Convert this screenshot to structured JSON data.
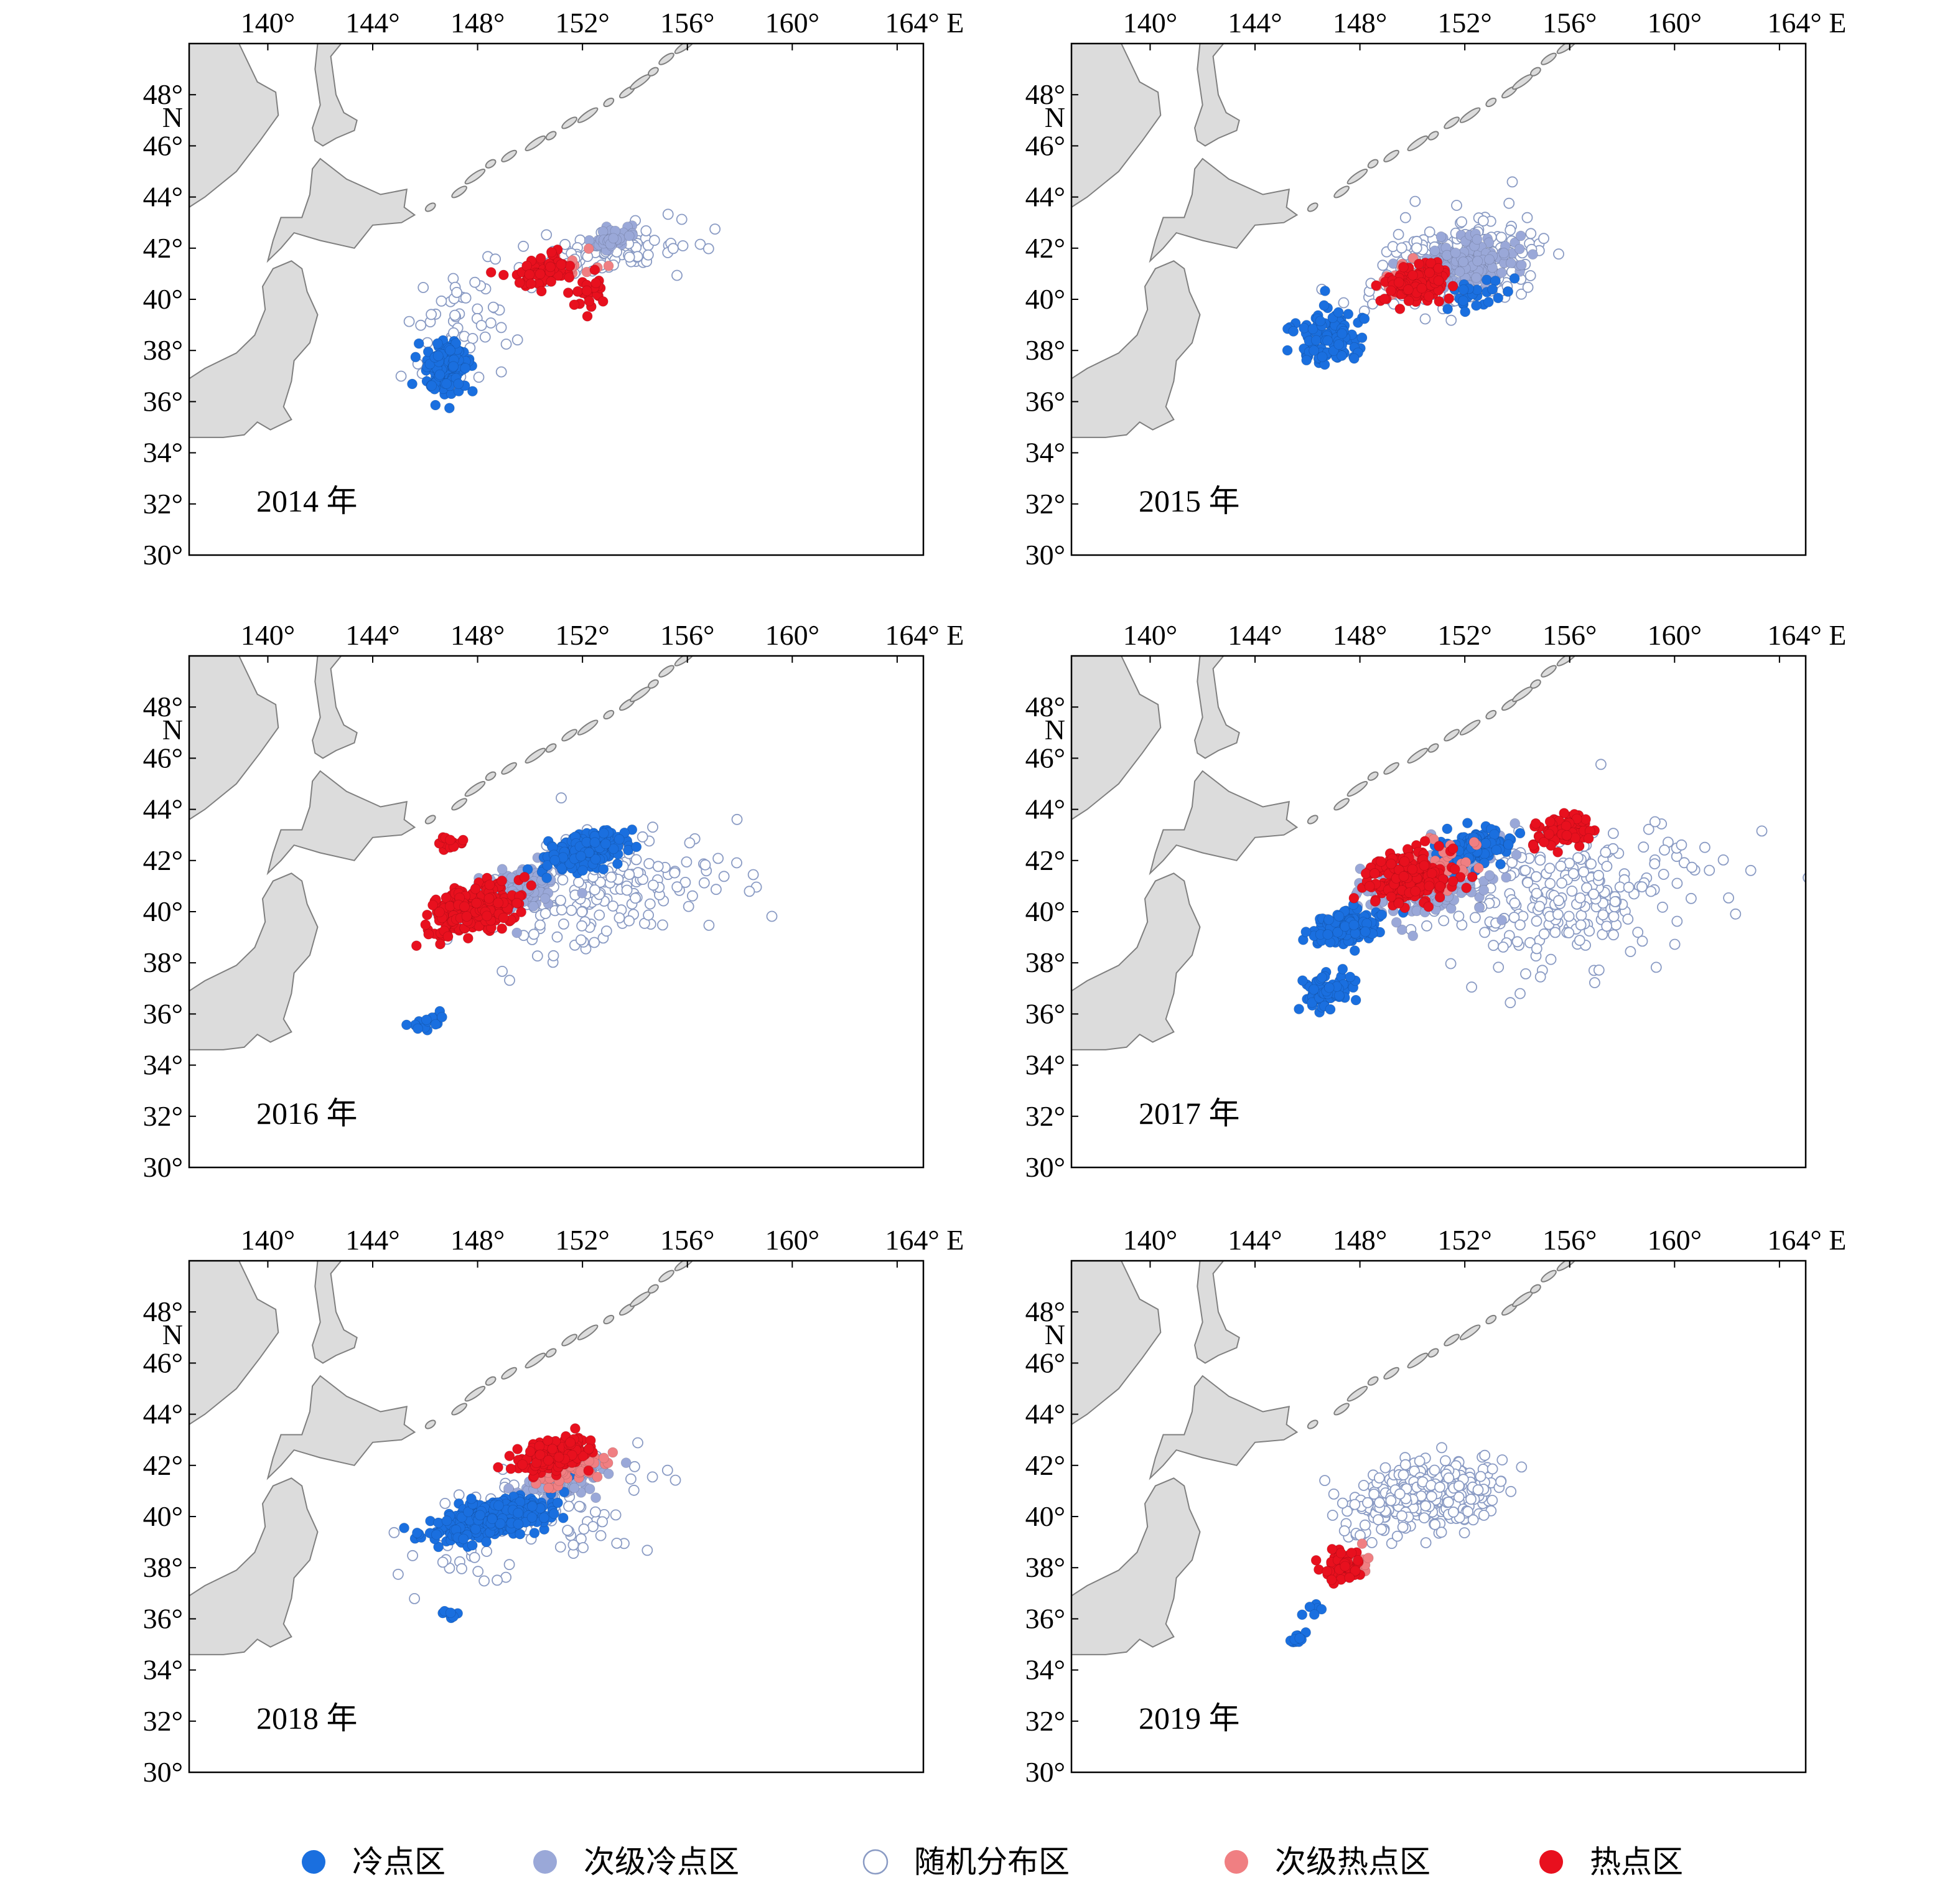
{
  "figure": {
    "x_ticks": [
      "140°",
      "144°",
      "148°",
      "152°",
      "156°",
      "160°",
      "164° E"
    ],
    "y_ticks": [
      "48°",
      "N",
      "46°",
      "44°",
      "42°",
      "40°",
      "38°",
      "36°",
      "34°",
      "32°",
      "30°"
    ]
  },
  "panels": [
    {
      "year_label": "2014 年"
    },
    {
      "year_label": "2015 年"
    },
    {
      "year_label": "2016 年"
    },
    {
      "year_label": "2017 年"
    },
    {
      "year_label": "2018 年"
    },
    {
      "year_label": "2019 年"
    }
  ],
  "legend": [
    {
      "label": "冷点区",
      "color": "#1a6fdf",
      "style": "filled"
    },
    {
      "label": "次级冷点区",
      "color": "#9aa8d8",
      "style": "filled"
    },
    {
      "label": "随机分布区",
      "color": "#ffffff",
      "stroke": "#8a9bc4",
      "style": "hollow"
    },
    {
      "label": "次级热点区",
      "color": "#f07f82",
      "style": "filled"
    },
    {
      "label": "热点区",
      "color": "#e8101e",
      "style": "filled"
    }
  ],
  "colors": {
    "land": "#dcdcdc",
    "land_outline": "#7f7f7f",
    "frame": "#000000"
  },
  "chart_data": {
    "type": "scatter",
    "projection": "lon-lat",
    "xlim": [
      137,
      165
    ],
    "ylim": [
      30,
      50
    ],
    "categories": [
      "冷点区",
      "次级冷点区",
      "随机分布区",
      "次级热点区",
      "热点区"
    ],
    "panels": [
      {
        "year": 2014,
        "clusters": [
          {
            "category": "冷点区",
            "lon": 146.8,
            "lat": 37.3,
            "spread_lon": 0.8,
            "spread_lat": 0.9,
            "n": 140
          },
          {
            "category": "随机分布区",
            "lon": 147.5,
            "lat": 39.0,
            "spread_lon": 2.0,
            "spread_lat": 2.5,
            "n": 60
          },
          {
            "category": "随机分布区",
            "lon": 153.0,
            "lat": 41.8,
            "spread_lon": 2.5,
            "spread_lat": 0.9,
            "n": 90
          },
          {
            "category": "次级冷点区",
            "lon": 153.2,
            "lat": 42.4,
            "spread_lon": 0.7,
            "spread_lat": 0.4,
            "n": 40
          },
          {
            "category": "热点区",
            "lon": 150.5,
            "lat": 41.1,
            "spread_lon": 0.9,
            "spread_lat": 0.6,
            "n": 70
          },
          {
            "category": "热点区",
            "lon": 152.3,
            "lat": 40.2,
            "spread_lon": 0.7,
            "spread_lat": 0.6,
            "n": 25
          },
          {
            "category": "次级热点区",
            "lon": 151.6,
            "lat": 41.3,
            "spread_lon": 0.8,
            "spread_lat": 0.5,
            "n": 15
          }
        ]
      },
      {
        "year": 2015,
        "clusters": [
          {
            "category": "冷点区",
            "lon": 146.8,
            "lat": 38.5,
            "spread_lon": 1.2,
            "spread_lat": 1.0,
            "n": 110
          },
          {
            "category": "随机分布区",
            "lon": 151.5,
            "lat": 41.3,
            "spread_lon": 3.0,
            "spread_lat": 1.5,
            "n": 240
          },
          {
            "category": "次级冷点区",
            "lon": 152.2,
            "lat": 41.4,
            "spread_lon": 1.8,
            "spread_lat": 0.9,
            "n": 150
          },
          {
            "category": "热点区",
            "lon": 150.2,
            "lat": 40.6,
            "spread_lon": 1.1,
            "spread_lat": 0.6,
            "n": 120
          },
          {
            "category": "次级热点区",
            "lon": 149.8,
            "lat": 40.8,
            "spread_lon": 0.9,
            "spread_lat": 0.6,
            "n": 25
          },
          {
            "category": "冷点区",
            "lon": 152.5,
            "lat": 40.2,
            "spread_lon": 1.2,
            "spread_lat": 0.5,
            "n": 25
          }
        ]
      },
      {
        "year": 2016,
        "clusters": [
          {
            "category": "热点区",
            "lon": 147.8,
            "lat": 40.1,
            "spread_lon": 1.5,
            "spread_lat": 0.8,
            "n": 280
          },
          {
            "category": "次级冷点区",
            "lon": 149.5,
            "lat": 40.8,
            "spread_lon": 1.5,
            "spread_lat": 0.8,
            "n": 140
          },
          {
            "category": "冷点区",
            "lon": 152.2,
            "lat": 42.4,
            "spread_lon": 1.5,
            "spread_lat": 0.6,
            "n": 220
          },
          {
            "category": "随机分布区",
            "lon": 152.5,
            "lat": 40.5,
            "spread_lon": 4.5,
            "spread_lat": 2.0,
            "n": 170
          },
          {
            "category": "冷点区",
            "lon": 146.2,
            "lat": 35.7,
            "spread_lon": 0.6,
            "spread_lat": 0.3,
            "n": 15
          },
          {
            "category": "热点区",
            "lon": 147.0,
            "lat": 42.6,
            "spread_lon": 0.4,
            "spread_lat": 0.3,
            "n": 12
          }
        ]
      },
      {
        "year": 2017,
        "clusters": [
          {
            "category": "冷点区",
            "lon": 147.5,
            "lat": 39.4,
            "spread_lon": 1.2,
            "spread_lat": 0.6,
            "n": 160
          },
          {
            "category": "冷点区",
            "lon": 146.7,
            "lat": 36.8,
            "spread_lon": 0.8,
            "spread_lat": 0.6,
            "n": 70
          },
          {
            "category": "热点区",
            "lon": 149.8,
            "lat": 41.3,
            "spread_lon": 1.4,
            "spread_lat": 1.0,
            "n": 190
          },
          {
            "category": "次级冷点区",
            "lon": 150.5,
            "lat": 41.0,
            "spread_lon": 2.5,
            "spread_lat": 1.2,
            "n": 150
          },
          {
            "category": "冷点区",
            "lon": 152.3,
            "lat": 42.5,
            "spread_lon": 1.2,
            "spread_lat": 0.6,
            "n": 140
          },
          {
            "category": "热点区",
            "lon": 155.8,
            "lat": 43.2,
            "spread_lon": 1.0,
            "spread_lat": 0.5,
            "n": 90
          },
          {
            "category": "随机分布区",
            "lon": 156.0,
            "lat": 40.5,
            "spread_lon": 5.0,
            "spread_lat": 2.5,
            "n": 240
          },
          {
            "category": "次级热点区",
            "lon": 151.0,
            "lat": 41.8,
            "spread_lon": 1.5,
            "spread_lat": 1.0,
            "n": 30
          }
        ]
      },
      {
        "year": 2018,
        "clusters": [
          {
            "category": "冷点区",
            "lon": 148.6,
            "lat": 39.9,
            "spread_lon": 2.0,
            "spread_lat": 0.6,
            "n": 380
          },
          {
            "category": "热点区",
            "lon": 151.0,
            "lat": 42.4,
            "spread_lon": 1.3,
            "spread_lat": 0.6,
            "n": 200
          },
          {
            "category": "次级冷点区",
            "lon": 151.3,
            "lat": 41.6,
            "spread_lon": 1.5,
            "spread_lat": 0.6,
            "n": 130
          },
          {
            "category": "次级热点区",
            "lon": 151.6,
            "lat": 41.9,
            "spread_lon": 1.2,
            "spread_lat": 0.5,
            "n": 60
          },
          {
            "category": "随机分布区",
            "lon": 150.5,
            "lat": 40.0,
            "spread_lon": 4.5,
            "spread_lat": 2.0,
            "n": 110
          },
          {
            "category": "冷点区",
            "lon": 147.0,
            "lat": 36.2,
            "spread_lon": 0.5,
            "spread_lat": 0.4,
            "n": 8
          }
        ]
      },
      {
        "year": 2019,
        "clusters": [
          {
            "category": "随机分布区",
            "lon": 150.5,
            "lat": 40.8,
            "spread_lon": 2.5,
            "spread_lat": 1.2,
            "n": 340
          },
          {
            "category": "热点区",
            "lon": 147.3,
            "lat": 38.0,
            "spread_lon": 0.7,
            "spread_lat": 0.6,
            "n": 55
          },
          {
            "category": "次级热点区",
            "lon": 147.6,
            "lat": 38.3,
            "spread_lon": 0.5,
            "spread_lat": 0.4,
            "n": 25
          },
          {
            "category": "冷点区",
            "lon": 145.6,
            "lat": 35.2,
            "spread_lon": 0.3,
            "spread_lat": 0.15,
            "n": 15
          },
          {
            "category": "冷点区",
            "lon": 146.2,
            "lat": 36.4,
            "spread_lon": 0.4,
            "spread_lat": 0.3,
            "n": 6
          }
        ]
      }
    ]
  }
}
